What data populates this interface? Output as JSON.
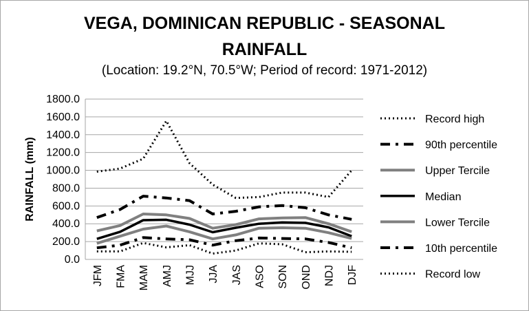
{
  "chart_data": {
    "type": "line",
    "title": "VEGA, DOMINICAN REPUBLIC - SEASONAL",
    "title_line2": "RAINFALL",
    "subtitle": "(Location: 19.2°N, 70.5°W; Period of record: 1971-2012)",
    "xlabel": "",
    "ylabel": "RAINFALL (mm)",
    "ylim": [
      0,
      1800
    ],
    "yticks": [
      "0.0",
      "200.0",
      "400.0",
      "600.0",
      "800.0",
      "1000.0",
      "1200.0",
      "1400.0",
      "1600.0",
      "1800.0"
    ],
    "grid": true,
    "legend_position": "right",
    "categories": [
      "JFM",
      "FMA",
      "MAM",
      "AMJ",
      "MJJ",
      "JJA",
      "JAS",
      "ASO",
      "SON",
      "OND",
      "NDJ",
      "DJF"
    ],
    "series": [
      {
        "name": "Record high",
        "color": "#000000",
        "style": "dotted",
        "values": [
          985,
          1020,
          1130,
          1555,
          1080,
          840,
          690,
          700,
          750,
          750,
          700,
          1000
        ]
      },
      {
        "name": "90th percentile",
        "color": "#000000",
        "style": "dashdot",
        "values": [
          470,
          560,
          710,
          690,
          660,
          510,
          540,
          590,
          605,
          580,
          500,
          450
        ]
      },
      {
        "name": "Upper Tercile",
        "color": "#808080",
        "style": "solid",
        "values": [
          320,
          380,
          510,
          500,
          460,
          350,
          390,
          455,
          465,
          470,
          400,
          310
        ]
      },
      {
        "name": "Median",
        "color": "#000000",
        "style": "solid",
        "values": [
          230,
          310,
          440,
          445,
          390,
          305,
          355,
          400,
          415,
          410,
          360,
          260
        ]
      },
      {
        "name": "Lower Tercile",
        "color": "#808080",
        "style": "solid",
        "values": [
          180,
          260,
          340,
          375,
          310,
          230,
          275,
          350,
          355,
          350,
          300,
          235
        ]
      },
      {
        "name": "10th percentile",
        "color": "#000000",
        "style": "dashdot",
        "values": [
          130,
          160,
          245,
          230,
          220,
          160,
          210,
          240,
          235,
          230,
          190,
          130
        ]
      },
      {
        "name": "Record low",
        "color": "#000000",
        "style": "dotted",
        "values": [
          90,
          90,
          185,
          135,
          160,
          65,
          100,
          180,
          170,
          80,
          90,
          85
        ]
      }
    ]
  }
}
